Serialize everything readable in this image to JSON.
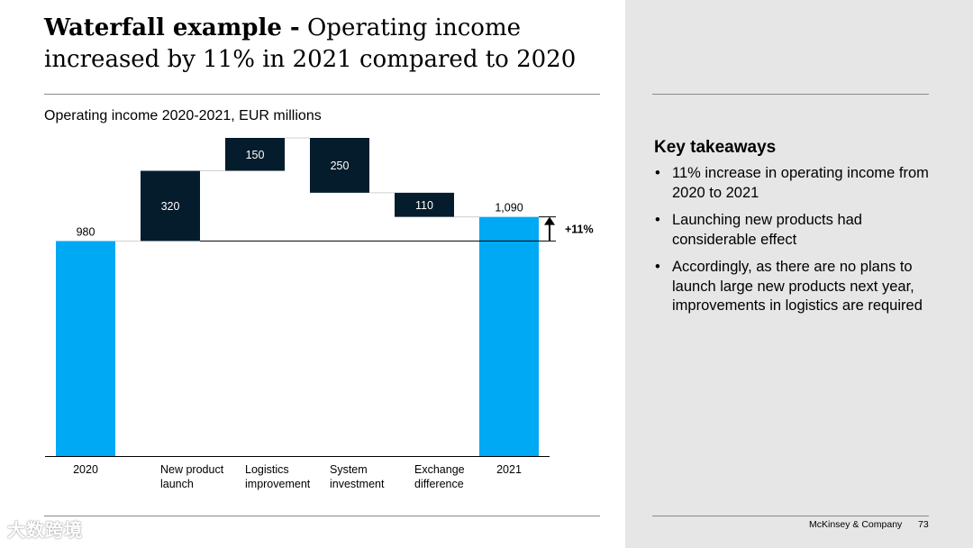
{
  "slide": {
    "title_bold": "Waterfall example -",
    "title_rest": "Operating income increased by 11% in 2021 compared to 2020",
    "subtitle": "Operating income 2020-2021, EUR millions"
  },
  "chart_data": {
    "type": "waterfall",
    "categories": [
      "2020",
      "New product launch",
      "Logistics improvement",
      "System investment",
      "Exchange difference",
      "2021"
    ],
    "category_lines": [
      [
        "2020"
      ],
      [
        "New product",
        "launch"
      ],
      [
        "Logistics",
        "improvement"
      ],
      [
        "System",
        "investment"
      ],
      [
        "Exchange",
        "difference"
      ],
      [
        "2021"
      ]
    ],
    "values": [
      980,
      320,
      150,
      -250,
      -110,
      1090
    ],
    "kinds": [
      "total",
      "increase",
      "increase",
      "decrease",
      "decrease",
      "total"
    ],
    "labels": [
      "980",
      "320",
      "150",
      "250",
      "110",
      "1,090"
    ],
    "change_label": "+11%",
    "colors": {
      "total": "#00a9f4",
      "step": "#051c2c",
      "step_text": "#ffffff"
    },
    "ylim": [
      0,
      1450
    ]
  },
  "takeaways": {
    "title": "Key takeaways",
    "items": [
      "11% increase in operating income from 2020 to 2021",
      "Launching new products had considerable effect",
      "Accordingly, as there are no plans to launch large new products next year,  improvements in logistics are required"
    ]
  },
  "footer": {
    "company": "McKinsey & Company",
    "page": "73"
  },
  "watermark": "大数跨境"
}
